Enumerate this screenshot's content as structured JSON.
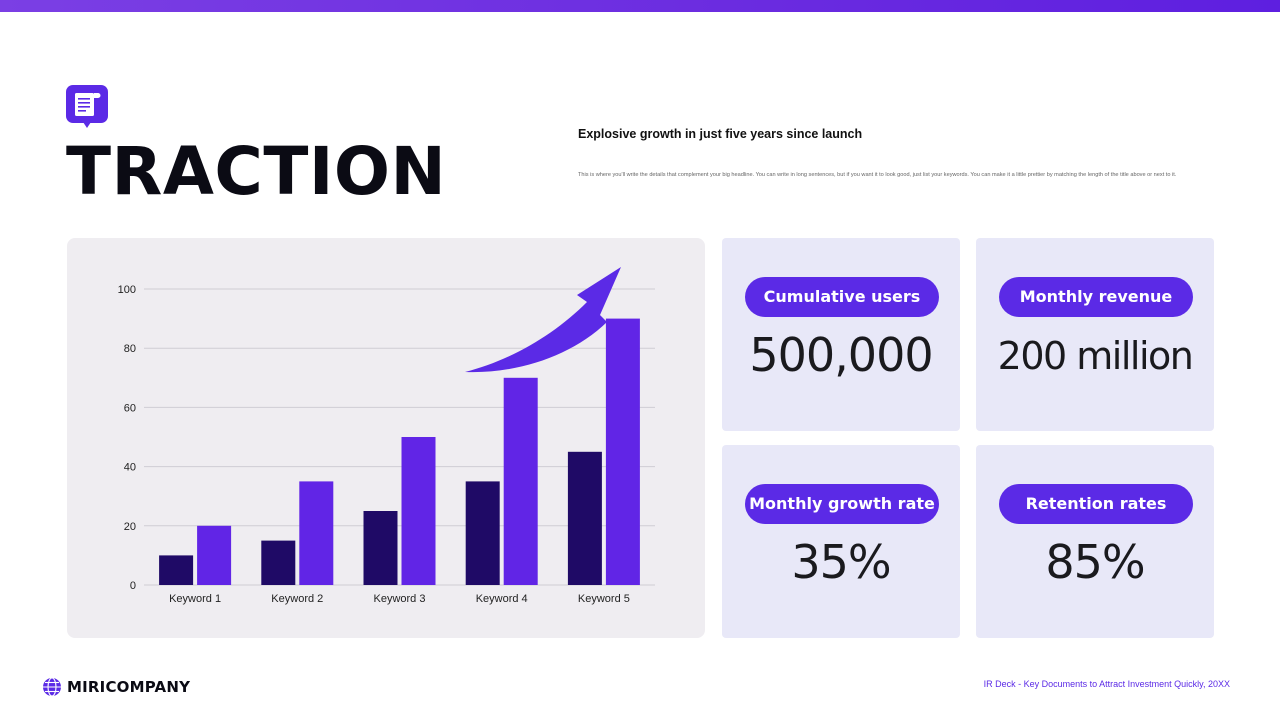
{
  "header": {
    "title": "TRACTION",
    "subtitle": "Explosive growth in just five years since launch",
    "description": "This is where you'll write the details that complement your big headline. You can write in long sentences, but if you want it to look good, just list your keywords. You can make it a little prettier by matching the length of the title above or next to it.",
    "icon": "document-icon"
  },
  "colors": {
    "accent": "#5b2ae6",
    "bar_dark": "#1f0a66",
    "bar_light": "#6125e6",
    "card_bg": "#e8e8f8",
    "chart_bg": "#efedf1"
  },
  "chart_data": {
    "type": "bar",
    "categories": [
      "Keyword 1",
      "Keyword 2",
      "Keyword 3",
      "Keyword 4",
      "Keyword 5"
    ],
    "series": [
      {
        "values": [
          10,
          15,
          25,
          35,
          45
        ],
        "color": "#1f0a66"
      },
      {
        "values": [
          20,
          35,
          50,
          70,
          90
        ],
        "color": "#6125e6"
      }
    ],
    "yticks": [
      0,
      20,
      40,
      60,
      80,
      100
    ],
    "ylim": [
      0,
      100
    ],
    "grid": true,
    "legend": "none",
    "annotation": "upward-trend-arrow"
  },
  "metrics": [
    {
      "label": "Cumulative users",
      "value": "500,000"
    },
    {
      "label": "Monthly revenue",
      "value": "200 million"
    },
    {
      "label": "Monthly growth rate",
      "value": "35%"
    },
    {
      "label": "Retention rates",
      "value": "85%"
    }
  ],
  "footer": {
    "brand": "MIRICOMPANY",
    "note": "IR Deck - Key Documents to Attract Investment Quickly, 20XX"
  }
}
